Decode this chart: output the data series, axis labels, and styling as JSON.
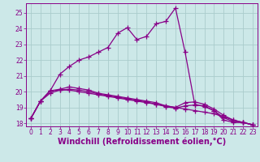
{
  "title": "",
  "xlabel": "Windchill (Refroidissement éolien,°C)",
  "ylabel": "",
  "bg_color": "#cce8e8",
  "line_color": "#880088",
  "grid_color": "#aacccc",
  "xlim": [
    -0.5,
    23.5
  ],
  "ylim": [
    17.8,
    25.6
  ],
  "yticks": [
    18,
    19,
    20,
    21,
    22,
    23,
    24,
    25
  ],
  "xticks": [
    0,
    1,
    2,
    3,
    4,
    5,
    6,
    7,
    8,
    9,
    10,
    11,
    12,
    13,
    14,
    15,
    16,
    17,
    18,
    19,
    20,
    21,
    22,
    23
  ],
  "series": [
    [
      18.3,
      19.4,
      19.9,
      20.1,
      20.1,
      20.0,
      19.9,
      19.8,
      19.7,
      19.6,
      19.5,
      19.4,
      19.3,
      19.2,
      19.1,
      19.0,
      18.9,
      18.8,
      18.7,
      18.6,
      18.4,
      18.2,
      18.05,
      17.9
    ],
    [
      18.3,
      19.4,
      20.05,
      21.1,
      21.6,
      22.0,
      22.2,
      22.5,
      22.8,
      23.7,
      24.05,
      23.3,
      23.5,
      24.3,
      24.45,
      25.3,
      22.5,
      19.2,
      19.05,
      18.8,
      18.2,
      18.05,
      18.05,
      17.9
    ],
    [
      18.3,
      19.4,
      20.05,
      20.15,
      20.3,
      20.2,
      20.1,
      19.9,
      19.8,
      19.7,
      19.6,
      19.5,
      19.4,
      19.3,
      19.1,
      19.0,
      19.3,
      19.35,
      19.2,
      18.9,
      18.5,
      18.2,
      18.05,
      17.9
    ],
    [
      18.3,
      19.4,
      20.05,
      20.1,
      20.15,
      20.1,
      20.0,
      19.85,
      19.75,
      19.65,
      19.55,
      19.45,
      19.35,
      19.2,
      19.05,
      18.95,
      19.1,
      19.15,
      19.1,
      18.8,
      18.35,
      18.1,
      18.05,
      17.9
    ]
  ],
  "marker": "+",
  "markersize": 4,
  "linewidth": 0.9,
  "font_color": "#880088",
  "tick_labelsize": 5.5,
  "xlabel_fontsize": 7.0,
  "xlabel_fontweight": "bold"
}
